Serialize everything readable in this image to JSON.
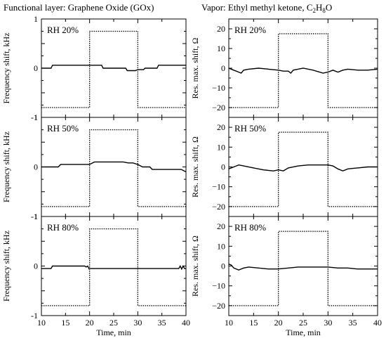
{
  "titles": {
    "left": "Functional layer: Graphene Oxide (GOx)",
    "right_prefix": "Vapor: Ethyl methyl ketone, C",
    "right_sub1": "2",
    "right_mid": "H",
    "right_sub2": "8",
    "right_suffix": "O"
  },
  "chart_data": [
    {
      "type": "line",
      "panel": "left-top",
      "rh_label": "RH 20%",
      "ylabel": "Frequency shift, kHz",
      "xlabel": "Time, min",
      "xlim": [
        10,
        40
      ],
      "ylim": [
        -1,
        1
      ],
      "xticks": [
        10,
        15,
        20,
        25,
        30,
        35,
        40
      ],
      "yticks": [
        -1,
        -0.5,
        0,
        0.5,
        1
      ],
      "ytick_labels": [
        "-1",
        "",
        "0",
        "",
        "1"
      ],
      "x_tick_labels_shown": false,
      "series": [
        {
          "style": "solid",
          "x": [
            10,
            12,
            12.3,
            20,
            22.5,
            22.8,
            26,
            27.5,
            27.8,
            29.5,
            30,
            31.2,
            31.5,
            34,
            34.3,
            40
          ],
          "y": [
            0,
            0,
            0.06,
            0.06,
            0.06,
            0.0,
            0.0,
            0.0,
            -0.05,
            -0.05,
            -0.03,
            -0.03,
            0.0,
            0.0,
            0.06,
            0.06
          ]
        },
        {
          "style": "dotted",
          "x": [
            10,
            20,
            20,
            30,
            30,
            40
          ],
          "y": [
            -0.8,
            -0.8,
            0.75,
            0.75,
            -0.8,
            -0.8
          ]
        }
      ]
    },
    {
      "type": "line",
      "panel": "right-top",
      "rh_label": "RH 20%",
      "ylabel": "Res. max. shift, Ω",
      "xlabel": "Time, min",
      "xlim": [
        10,
        40
      ],
      "ylim": [
        -25,
        25
      ],
      "xticks": [
        10,
        15,
        20,
        25,
        30,
        35,
        40
      ],
      "yticks": [
        -20,
        -10,
        0,
        10,
        20
      ],
      "ytick_labels": [
        "−20",
        "−10",
        "0",
        "10",
        "20"
      ],
      "x_tick_labels_shown": false,
      "series": [
        {
          "style": "solid",
          "x": [
            10,
            11,
            12,
            12.5,
            13,
            14,
            16,
            18,
            20,
            21,
            22,
            22.5,
            23,
            25,
            27,
            29,
            30,
            31,
            32,
            33,
            34,
            36,
            38,
            40
          ],
          "y": [
            0,
            -1,
            -2,
            -2.5,
            -1,
            -0.5,
            0,
            -0.5,
            -1,
            -1.5,
            -1.5,
            -2.5,
            -1,
            0,
            -1,
            -2.5,
            -2,
            -1,
            -2,
            -1,
            -0.5,
            -1,
            -1,
            -0.5
          ]
        },
        {
          "style": "dotted",
          "x": [
            10,
            20,
            20,
            30,
            30,
            40
          ],
          "y": [
            -20,
            -20,
            17.5,
            17.5,
            -20,
            -20
          ]
        }
      ]
    },
    {
      "type": "line",
      "panel": "left-middle",
      "rh_label": "RH 50%",
      "ylabel": "Frequency shift, kHz",
      "xlabel": "Time, min",
      "xlim": [
        10,
        40
      ],
      "ylim": [
        -1,
        1
      ],
      "xticks": [
        10,
        15,
        20,
        25,
        30,
        35,
        40
      ],
      "yticks": [
        -1,
        -0.5,
        0,
        0.5,
        1
      ],
      "ytick_labels": [
        "-1",
        "",
        "0",
        "",
        "1"
      ],
      "x_tick_labels_shown": false,
      "series": [
        {
          "style": "solid",
          "x": [
            10,
            13.5,
            14,
            20,
            21,
            27,
            28,
            29,
            30,
            31,
            32.5,
            33,
            39,
            40
          ],
          "y": [
            0,
            0,
            0.05,
            0.05,
            0.1,
            0.1,
            0.08,
            0.08,
            0.05,
            0.0,
            0.0,
            -0.05,
            -0.05,
            -0.1
          ]
        },
        {
          "style": "dotted",
          "x": [
            10,
            20,
            20,
            30,
            30,
            40
          ],
          "y": [
            -0.8,
            -0.8,
            0.75,
            0.75,
            -0.8,
            -0.8
          ]
        }
      ]
    },
    {
      "type": "line",
      "panel": "right-middle",
      "rh_label": "RH 50%",
      "ylabel": "Res. max. shift, Ω",
      "xlabel": "Time, min",
      "xlim": [
        10,
        40
      ],
      "ylim": [
        -25,
        25
      ],
      "xticks": [
        10,
        15,
        20,
        25,
        30,
        35,
        40
      ],
      "yticks": [
        -20,
        -10,
        0,
        10,
        20
      ],
      "ytick_labels": [
        "−20",
        "−10",
        "0",
        "10",
        "20"
      ],
      "x_tick_labels_shown": false,
      "series": [
        {
          "style": "solid",
          "x": [
            10,
            11,
            12,
            13,
            15,
            17,
            19,
            20,
            21,
            22,
            24,
            26,
            28,
            30,
            31,
            32,
            33,
            34,
            36,
            38,
            40
          ],
          "y": [
            -1,
            0,
            1,
            0.5,
            -0.5,
            -1.5,
            -2,
            -1.5,
            -2,
            -0.5,
            0.5,
            1,
            1,
            1,
            0.5,
            -1,
            -2,
            -1,
            -0.5,
            0,
            0
          ]
        },
        {
          "style": "dotted",
          "x": [
            10,
            20,
            20,
            30,
            30,
            40
          ],
          "y": [
            -20,
            -20,
            17.5,
            17.5,
            -20,
            -20
          ]
        }
      ]
    },
    {
      "type": "line",
      "panel": "left-bottom",
      "rh_label": "RH 80%",
      "ylabel": "Frequency shift, kHz",
      "xlabel": "Time, min",
      "xlim": [
        10,
        40
      ],
      "ylim": [
        -1,
        1
      ],
      "xticks": [
        10,
        15,
        20,
        25,
        30,
        35,
        40
      ],
      "yticks": [
        -1,
        -0.5,
        0,
        0.5,
        1
      ],
      "ytick_labels": [
        "-1",
        "",
        "0",
        "",
        "1"
      ],
      "x_tick_labels_shown": true,
      "xtick_labels": [
        "10",
        "15",
        "20",
        "25",
        "30",
        "35",
        "40"
      ],
      "series": [
        {
          "style": "solid",
          "x": [
            10,
            12,
            12.3,
            19,
            19.3,
            19.6,
            19.9,
            20.2,
            24,
            34,
            38.5,
            38.8,
            39.1,
            39.4,
            39.7,
            40
          ],
          "y": [
            -0.05,
            -0.05,
            0.0,
            0.0,
            -0.02,
            0.0,
            -0.06,
            -0.05,
            -0.05,
            -0.05,
            -0.05,
            0.0,
            -0.06,
            0.0,
            -0.05,
            -0.05
          ]
        },
        {
          "style": "dotted",
          "x": [
            10,
            20,
            20,
            30,
            30,
            40
          ],
          "y": [
            -0.8,
            -0.8,
            0.75,
            0.75,
            -0.8,
            -0.8
          ]
        }
      ]
    },
    {
      "type": "line",
      "panel": "right-bottom",
      "rh_label": "RH 80%",
      "ylabel": "Res. max. shift, Ω",
      "xlabel": "Time, min",
      "xlim": [
        10,
        40
      ],
      "ylim": [
        -25,
        25
      ],
      "xticks": [
        10,
        15,
        20,
        25,
        30,
        35,
        40
      ],
      "yticks": [
        -20,
        -10,
        0,
        10,
        20
      ],
      "ytick_labels": [
        "−20",
        "−10",
        "0",
        "10",
        "20"
      ],
      "x_tick_labels_shown": true,
      "xtick_labels": [
        "10",
        "15",
        "20",
        "25",
        "30",
        "35",
        "40"
      ],
      "series": [
        {
          "style": "solid",
          "x": [
            10,
            10.5,
            11,
            12,
            13,
            14,
            16,
            18,
            20,
            22,
            24,
            26,
            28,
            30,
            32,
            34,
            36,
            38,
            40
          ],
          "y": [
            1,
            0.5,
            -1,
            -2,
            -1,
            -0.5,
            -1,
            -1.5,
            -1.5,
            -1,
            -0.5,
            -0.5,
            -0.5,
            -0.5,
            -1,
            -1,
            -1.5,
            -1.5,
            -1.5
          ]
        },
        {
          "style": "dotted",
          "x": [
            10,
            20,
            20,
            30,
            30,
            40
          ],
          "y": [
            -20,
            -20,
            17.5,
            17.5,
            -20,
            -20
          ]
        }
      ]
    }
  ]
}
